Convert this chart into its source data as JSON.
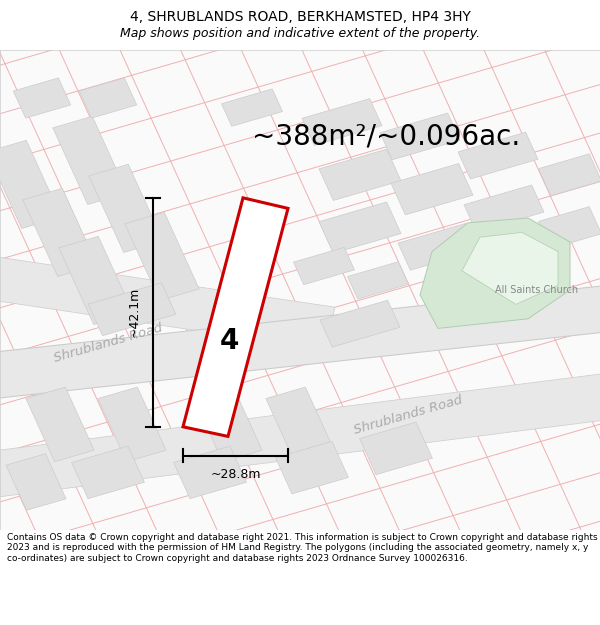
{
  "title": "4, SHRUBLANDS ROAD, BERKHAMSTED, HP4 3HY",
  "subtitle": "Map shows position and indicative extent of the property.",
  "area_label": "~388m²/~0.096ac.",
  "number_label": "4",
  "dim_height": "~42.1m",
  "dim_width": "~28.8m",
  "road_label_1": "Shrublands Road",
  "road_label_2": "Shrublands Road",
  "church_label": "All Saints Church",
  "footer": "Contains OS data © Crown copyright and database right 2021. This information is subject to Crown copyright and database rights 2023 and is reproduced with the permission of HM Land Registry. The polygons (including the associated geometry, namely x, y co-ordinates) are subject to Crown copyright and database rights 2023 Ordnance Survey 100026316.",
  "bg_color": "#ffffff",
  "map_bg": "#ffffff",
  "bld_color": "#e0e0e0",
  "bld_edge": "#cccccc",
  "road_color": "#e8e8e8",
  "road_edge": "#cccccc",
  "church_fill": "#d4e8d4",
  "church_edge": "#b0ccb0",
  "grid_line_color": "#f0b0b0",
  "plot_edge": "#cc0000",
  "dim_color": "#000000",
  "road_label_color": "#aaaaaa",
  "church_label_color": "#888888",
  "title_fontsize": 10,
  "subtitle_fontsize": 9,
  "area_fontsize": 20,
  "footer_fontsize": 6.5,
  "figsize": [
    6.0,
    6.25
  ],
  "dpi": 100
}
